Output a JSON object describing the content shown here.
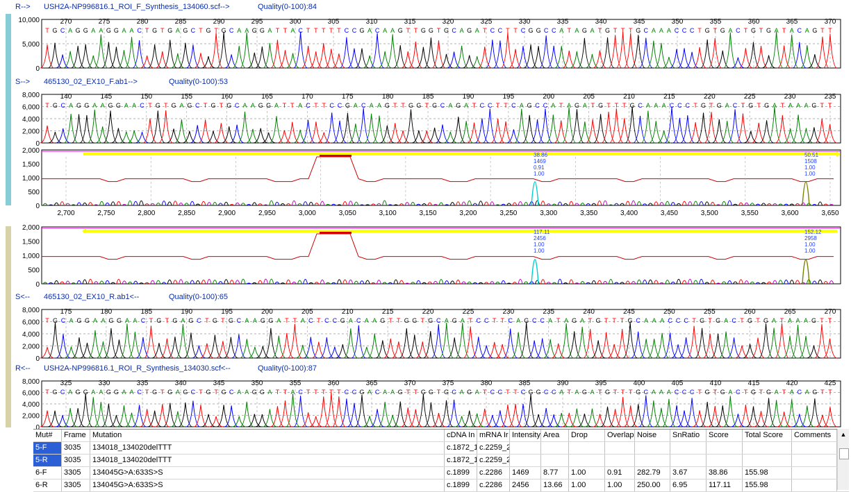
{
  "colors": {
    "accent_cyan": "#86cdd8",
    "accent_khaki": "#d8d2a8",
    "label_blue": "#0b2da8",
    "trace_A": "#008000",
    "trace_C": "#0000ff",
    "trace_G": "#000000",
    "trace_T": "#ff0000",
    "diff_line": "#d00000",
    "highlight_yellow": "#ffff00",
    "highlight_magenta": "#ff00ff",
    "marker_cyan": "#00d0d0",
    "marker_olive": "#808000"
  },
  "panels": [
    {
      "prefix": "R-->",
      "name": "USH2A-NP996816.1_ROI_F_Synthesis_134060.scf-->",
      "quality": "Quality(0-100):84",
      "yticks": [
        "10,000",
        "5,000",
        "0"
      ],
      "xticks": [
        "270",
        "275",
        "280",
        "285",
        "290",
        "295",
        "300",
        "305",
        "310",
        "315",
        "320",
        "325",
        "330",
        "335",
        "340",
        "345",
        "350",
        "355",
        "360",
        "365",
        "370"
      ],
      "sequence": "TGCAGGAAGGAACTGTGAGCTGTGCAAGGATTACTTTTTCCGACAAGTTGGTGCAGATCCTTCGGCCATAGATGTTTGCAAACCCTGTGACTGTGATACAGTT"
    },
    {
      "prefix": "S-->",
      "name": "465130_02_EX10_F.ab1-->",
      "quality": "Quality(0-100):53",
      "yticks": [
        "8,000",
        "6,000",
        "4,000",
        "2,000",
        "0"
      ],
      "xticks": [
        "140",
        "145",
        "150",
        "155",
        "160",
        "165",
        "170",
        "175",
        "180",
        "185",
        "190",
        "195",
        "200",
        "205",
        "210",
        "215",
        "220",
        "225",
        "230",
        "235"
      ],
      "sequence": "TGCAGGAAGGAACTGTGAGCTGTGCAAGGATTACTTCCGACAAGTTGGTGCAGATCCTTCAGCCATAGATGTTTGCAAACCCTGTGACTGTGATAAAGTT"
    },
    {
      "prefix": "S<--",
      "name": "465130_02_EX10_R.ab1<--",
      "quality": "Quality(0-100):65",
      "yticks": [
        "8,000",
        "6,000",
        "4,000",
        "2,000",
        "0"
      ],
      "xticks": [
        "175",
        "180",
        "185",
        "190",
        "195",
        "200",
        "205",
        "210",
        "215",
        "220",
        "225",
        "230",
        "235",
        "240",
        "245",
        "250",
        "255",
        "260",
        "265",
        "270"
      ],
      "sequence": "TGCAGGAAGGAACTGTGAGCTGTGCAAGGATTACTCCGACAAGTTGGTGCAGATCCTTCAGCCATAGATGTTTGCAAACCCTGTGACTGTGATAAAGTT"
    },
    {
      "prefix": "R<--",
      "name": "USH2A-NP996816.1_ROI_R_Synthesis_134030.scf<--",
      "quality": "Quality(0-100):87",
      "yticks": [
        "8,000",
        "6,000",
        "4,000",
        "2,000",
        "0"
      ],
      "xticks": [
        "325",
        "330",
        "335",
        "340",
        "345",
        "350",
        "355",
        "360",
        "365",
        "370",
        "375",
        "380",
        "385",
        "390",
        "395",
        "400",
        "405",
        "410",
        "415",
        "420",
        "425"
      ],
      "sequence": "TGCAGGAAGGAACTGTGAGCTGTGCAAGGATTACTTTTTCCGACAAGTTGGTGCAGATCCTTCGGCCATAGATGTTTGCAAACCCTGTGACTGTGATACAGTT"
    }
  ],
  "diff_panels": [
    {
      "yticks": [
        "2,000",
        "1,500",
        "1,000",
        "500",
        "0"
      ],
      "xticks": [
        "2,700",
        "2,750",
        "2,800",
        "2,850",
        "2,900",
        "2,950",
        "3,000",
        "3,050",
        "3,100",
        "3,150",
        "3,200",
        "3,250",
        "3,300",
        "3,350",
        "3,400",
        "3,450",
        "3,500",
        "3,550",
        "3,600",
        "3,650"
      ],
      "markers": [
        {
          "score": "38.86",
          "intensity": "1469",
          "overlap": "0.91",
          "drop": "1.00"
        },
        {
          "score": "50.51",
          "intensity": "1508",
          "overlap": "1.00",
          "drop": "1.00"
        }
      ]
    },
    {
      "yticks": [
        "2,000",
        "1,500",
        "1,000",
        "500",
        "0"
      ],
      "markers": [
        {
          "score": "117.11",
          "intensity": "2456",
          "overlap": "1.00",
          "drop": "1.00"
        },
        {
          "score": "152.12",
          "intensity": "2958",
          "overlap": "1.00",
          "drop": "1.00"
        }
      ]
    }
  ],
  "table": {
    "headers": [
      "Mut#",
      "Frame",
      "Mutation",
      "cDNA In",
      "mRNA Ir",
      "Intensity",
      "Area",
      "Drop",
      "Overlap",
      "Noise",
      "SnRatio",
      "Score",
      "Total Score",
      "Comments"
    ],
    "rows": [
      [
        "5-F",
        "3035",
        "134018_134020delTTT",
        "c.1872_1",
        "c.2259_2",
        "",
        "",
        "",
        "",
        "",
        "",
        "",
        "",
        ""
      ],
      [
        "5-R",
        "3035",
        "134018_134020delTTT",
        "c.1872_1",
        "c.2259_2",
        "",
        "",
        "",
        "",
        "",
        "",
        "",
        "",
        ""
      ],
      [
        "6-F",
        "3305",
        "134045G>A:633S>S",
        "c.1899",
        "c.2286",
        "1469",
        "8.77",
        "1.00",
        "0.91",
        "282.79",
        "3.67",
        "38.86",
        "155.98",
        ""
      ],
      [
        "6-R",
        "3305",
        "134045G>A:633S>S",
        "c.1899",
        "c.2286",
        "2456",
        "13.66",
        "1.00",
        "1.00",
        "250.00",
        "6.95",
        "117.11",
        "155.98",
        ""
      ]
    ]
  }
}
